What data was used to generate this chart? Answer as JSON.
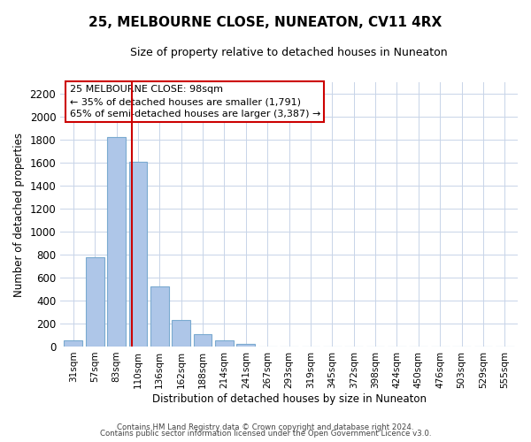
{
  "title": "25, MELBOURNE CLOSE, NUNEATON, CV11 4RX",
  "subtitle": "Size of property relative to detached houses in Nuneaton",
  "xlabel": "Distribution of detached houses by size in Nuneaton",
  "ylabel": "Number of detached properties",
  "bar_labels": [
    "31sqm",
    "57sqm",
    "83sqm",
    "110sqm",
    "136sqm",
    "162sqm",
    "188sqm",
    "214sqm",
    "241sqm",
    "267sqm",
    "293sqm",
    "319sqm",
    "345sqm",
    "372sqm",
    "398sqm",
    "424sqm",
    "450sqm",
    "476sqm",
    "503sqm",
    "529sqm",
    "555sqm"
  ],
  "bar_values": [
    50,
    775,
    1820,
    1610,
    520,
    230,
    105,
    55,
    25,
    0,
    0,
    0,
    0,
    0,
    0,
    0,
    0,
    0,
    0,
    0,
    0
  ],
  "bar_color": "#aec6e8",
  "bar_edge_color": "#7aaad0",
  "vline_x_index": 2.72,
  "vline_color": "#cc0000",
  "ylim": [
    0,
    2300
  ],
  "yticks": [
    0,
    200,
    400,
    600,
    800,
    1000,
    1200,
    1400,
    1600,
    1800,
    2000,
    2200
  ],
  "annotation_title": "25 MELBOURNE CLOSE: 98sqm",
  "annotation_line1": "← 35% of detached houses are smaller (1,791)",
  "annotation_line2": "65% of semi-detached houses are larger (3,387) →",
  "footer_line1": "Contains HM Land Registry data © Crown copyright and database right 2024.",
  "footer_line2": "Contains public sector information licensed under the Open Government Licence v3.0.",
  "background_color": "#ffffff",
  "grid_color": "#c8d4e8"
}
